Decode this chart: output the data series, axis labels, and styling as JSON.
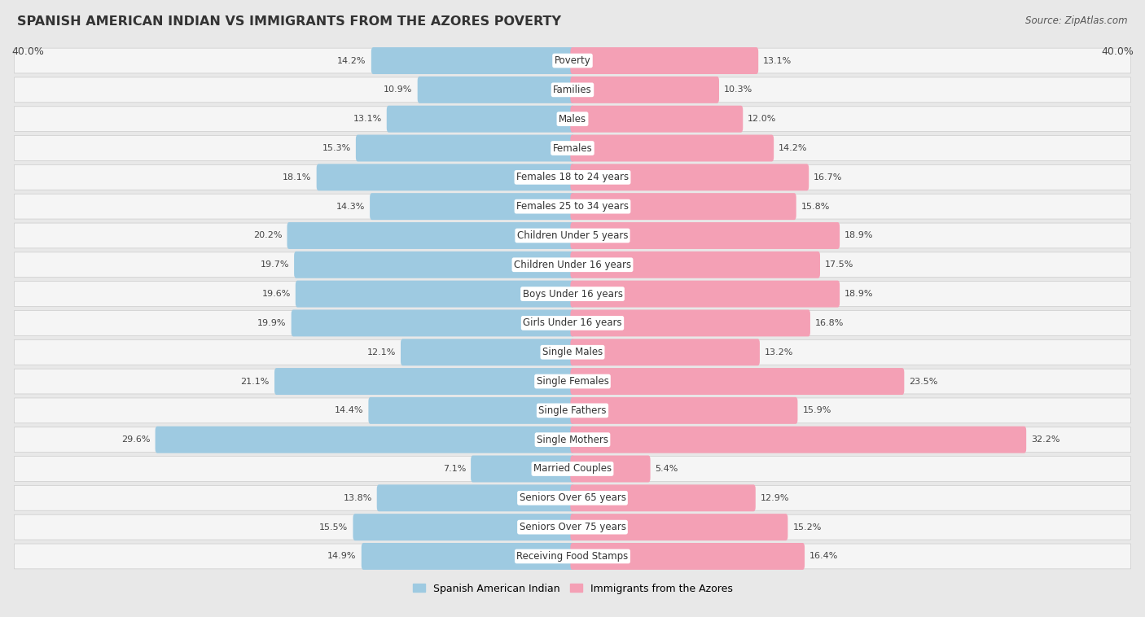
{
  "title": "SPANISH AMERICAN INDIAN VS IMMIGRANTS FROM THE AZORES POVERTY",
  "source": "Source: ZipAtlas.com",
  "categories": [
    "Poverty",
    "Families",
    "Males",
    "Females",
    "Females 18 to 24 years",
    "Females 25 to 34 years",
    "Children Under 5 years",
    "Children Under 16 years",
    "Boys Under 16 years",
    "Girls Under 16 years",
    "Single Males",
    "Single Females",
    "Single Fathers",
    "Single Mothers",
    "Married Couples",
    "Seniors Over 65 years",
    "Seniors Over 75 years",
    "Receiving Food Stamps"
  ],
  "left_values": [
    14.2,
    10.9,
    13.1,
    15.3,
    18.1,
    14.3,
    20.2,
    19.7,
    19.6,
    19.9,
    12.1,
    21.1,
    14.4,
    29.6,
    7.1,
    13.8,
    15.5,
    14.9
  ],
  "right_values": [
    13.1,
    10.3,
    12.0,
    14.2,
    16.7,
    15.8,
    18.9,
    17.5,
    18.9,
    16.8,
    13.2,
    23.5,
    15.9,
    32.2,
    5.4,
    12.9,
    15.2,
    16.4
  ],
  "left_color": "#9ecae1",
  "right_color": "#f4a0b5",
  "left_label": "Spanish American Indian",
  "right_label": "Immigrants from the Azores",
  "xlim": 40.0,
  "background_color": "#e8e8e8",
  "row_bg": "#f5f5f5",
  "title_fontsize": 11.5,
  "source_fontsize": 8.5,
  "cat_fontsize": 8.5,
  "value_fontsize": 8.0
}
